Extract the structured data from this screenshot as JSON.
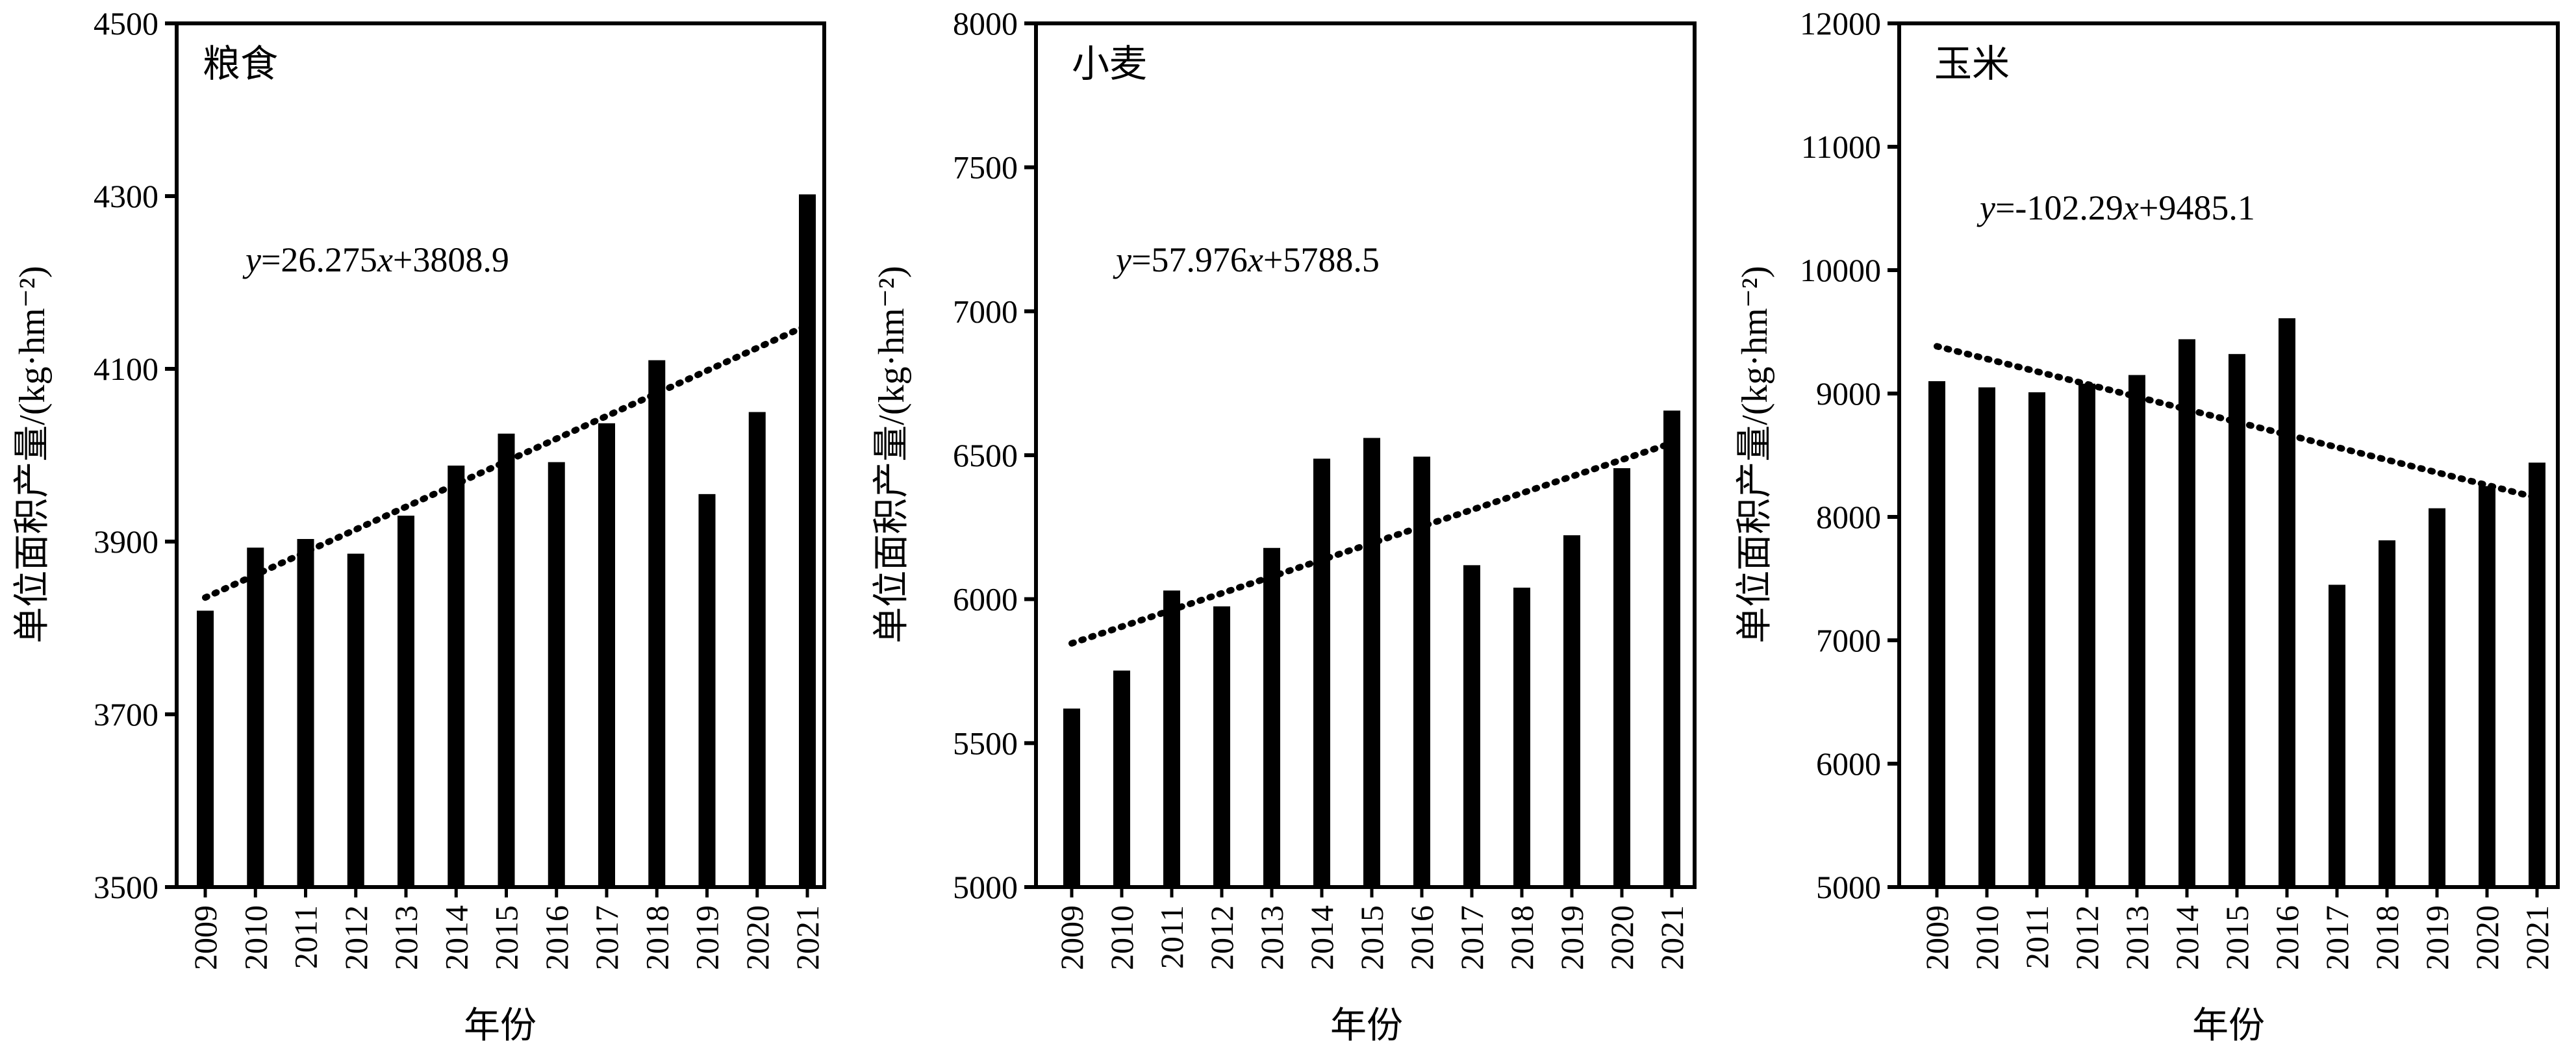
{
  "chart_data": [
    {
      "type": "bar",
      "title": "粮食",
      "xlabel": "年份",
      "ylabel": "单位面积产量/(kg·hm⁻²)",
      "categories": [
        "2009",
        "2010",
        "2011",
        "2012",
        "2013",
        "2014",
        "2015",
        "2016",
        "2017",
        "2018",
        "2019",
        "2020",
        "2021"
      ],
      "values": [
        3820,
        3893,
        3903,
        3886,
        3930,
        3988,
        4025,
        3992,
        4037,
        4110,
        3955,
        4050,
        4302
      ],
      "ylim": [
        3500,
        4500
      ],
      "yticks": [
        "3500",
        "3700",
        "3900",
        "4100",
        "4300",
        "4500"
      ],
      "trendline": {
        "slope": 26.275,
        "intercept": 3808.9,
        "style": "dotted"
      },
      "equation": {
        "y": "y",
        "eq1": "=26.275",
        "x": "x",
        "eq2": "+3808.9"
      },
      "grid": false
    },
    {
      "type": "bar",
      "title": "小麦",
      "xlabel": "年份",
      "ylabel": "单位面积产量/(kg·hm⁻²)",
      "categories": [
        "2009",
        "2010",
        "2011",
        "2012",
        "2013",
        "2014",
        "2015",
        "2016",
        "2017",
        "2018",
        "2019",
        "2020",
        "2021"
      ],
      "values": [
        5620,
        5752,
        6030,
        5975,
        6178,
        6488,
        6560,
        6495,
        6118,
        6040,
        6222,
        6455,
        6655
      ],
      "ylim": [
        5000,
        8000
      ],
      "yticks": [
        "5000",
        "5500",
        "6000",
        "6500",
        "7000",
        "7500",
        "8000"
      ],
      "trendline": {
        "slope": 57.976,
        "intercept": 5788.5,
        "style": "dotted"
      },
      "equation": {
        "y": "y",
        "eq1": "=57.976",
        "x": "x",
        "eq2": "+5788.5"
      },
      "grid": false
    },
    {
      "type": "bar",
      "title": "玉米",
      "xlabel": "年份",
      "ylabel": "单位面积产量/(kg·hm⁻²)",
      "categories": [
        "2009",
        "2010",
        "2011",
        "2012",
        "2013",
        "2014",
        "2015",
        "2016",
        "2017",
        "2018",
        "2019",
        "2020",
        "2021"
      ],
      "values": [
        9100,
        9050,
        9010,
        9080,
        9150,
        9440,
        9320,
        9610,
        7450,
        7810,
        8070,
        8250,
        8440
      ],
      "ylim": [
        5000,
        12000
      ],
      "yticks": [
        "5000",
        "6000",
        "7000",
        "8000",
        "9000",
        "10000",
        "11000",
        "12000"
      ],
      "trendline": {
        "slope": -102.29,
        "intercept": 9485.1,
        "style": "dotted"
      },
      "equation": {
        "y": "y",
        "eq1": "=-102.29",
        "x": "x",
        "eq2": "+9485.1"
      },
      "grid": false
    }
  ]
}
